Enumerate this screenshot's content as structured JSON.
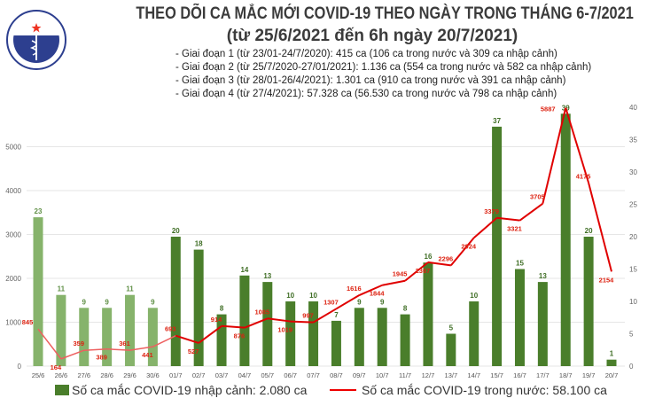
{
  "logo": {
    "text_top": "BỘ Y TẾ",
    "text_bottom": "MINISTRY OF HEALTH"
  },
  "header": {
    "title": "THEO DÕI CA MẮC MỚI COVID-19 THEO NGÀY TRONG THÁNG 6-7/2021",
    "subtitle": "(từ 25/6/2021 đến 6h ngày 20/7/2021)",
    "phases": [
      "- Giai đoạn 1 (từ 23/01-24/7/2020): 415 ca (106 ca trong nước và 309 ca nhập cảnh)",
      "- Giai đoạn 2 (từ 25/7/2020-27/01/2021): 1.136 ca (554 ca trong nước và 582 ca nhập cảnh)",
      "- Giai đoạn 3 (từ 28/01-26/4/2021): 1.301 ca (910 ca trong nước và 391 ca nhập cảnh)",
      "- Giai đoạn 4 (từ 27/4/2021): 57.328 ca (56.530 ca trong nước và 798 ca nhập cảnh)"
    ]
  },
  "chart_data": {
    "type": "bar+line",
    "categories": [
      "25/6",
      "26/6",
      "27/6",
      "28/6",
      "29/6",
      "30/6",
      "01/7",
      "02/7",
      "03/7",
      "04/7",
      "05/7",
      "06/7",
      "07/7",
      "08/7",
      "09/7",
      "10/7",
      "11/7",
      "12/7",
      "13/7",
      "14/7",
      "15/7",
      "16/7",
      "17/7",
      "18/7",
      "19/7",
      "20/7"
    ],
    "series": [
      {
        "name": "Số ca mắc COVID-19 nhập cảnh: 2.080 ca",
        "type": "bar",
        "axis": "right",
        "color": "#4a7e2b",
        "color_june": "#86b36b",
        "values": [
          23,
          11,
          9,
          9,
          11,
          9,
          20,
          18,
          8,
          14,
          13,
          10,
          10,
          7,
          9,
          9,
          8,
          16,
          5,
          10,
          37,
          15,
          13,
          39,
          20,
          1
        ]
      },
      {
        "name": "Số ca mắc COVID-19 trong nước: 58.100 ca",
        "type": "line",
        "axis": "left",
        "color": "#e00000",
        "color_june": "#ee6060",
        "values": [
          845,
          164,
          359,
          389,
          361,
          441,
          693,
          527,
          914,
          876,
          1085,
          1019,
          997,
          1307,
          1616,
          1844,
          1945,
          2367,
          2296,
          2924,
          3379,
          3321,
          3705,
          5887,
          4175,
          2154
        ]
      }
    ],
    "left_axis": {
      "ticks": [
        0,
        1000,
        2000,
        3000,
        4000,
        5000
      ],
      "range": [
        0,
        5900
      ]
    },
    "right_axis": {
      "ticks": [
        0,
        5,
        10,
        15,
        20,
        25,
        30,
        35,
        40
      ],
      "range": [
        0,
        40
      ]
    },
    "grid": true,
    "legend": "bottom"
  }
}
